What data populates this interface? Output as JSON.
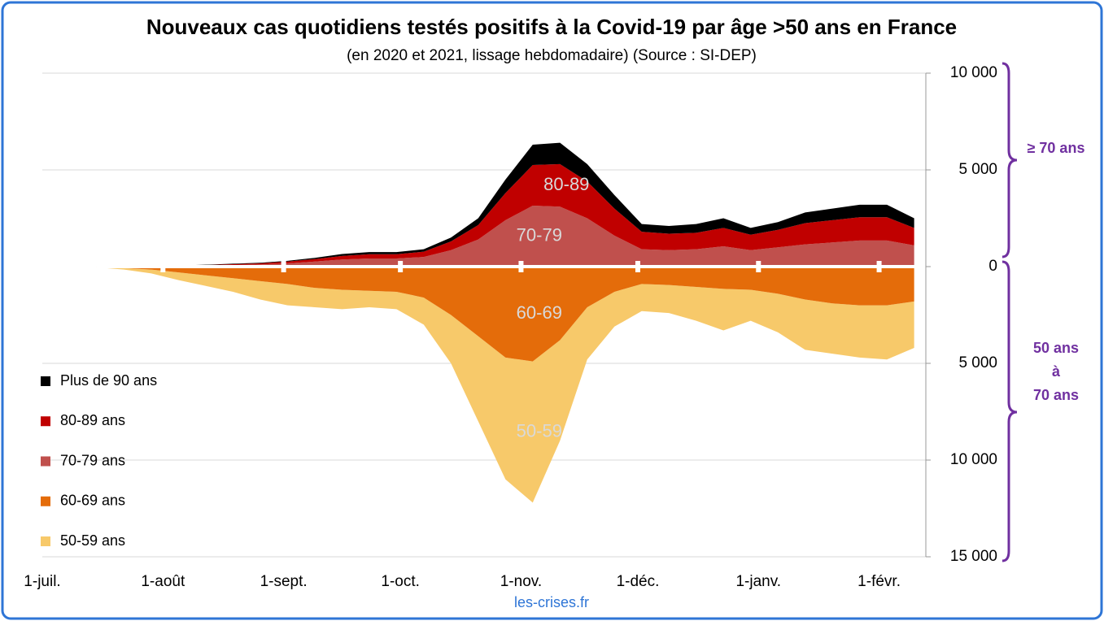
{
  "chart_data": {
    "type": "area",
    "title": "Nouveaux cas quotidiens testés positifs à la Covid-19 par âge >50 ans en France",
    "subtitle": "(en 2020 et 2021, lissage hebdomadaire) (Source : SI-DEP)",
    "source": "les-crises.fr",
    "brace_labels": {
      "upper": "≥ 70 ans",
      "lower": [
        "50 ans",
        "à",
        "70 ans"
      ]
    },
    "x": [
      14,
      21,
      28,
      35,
      42,
      49,
      56,
      63,
      70,
      77,
      84,
      91,
      98,
      105,
      112,
      119,
      126,
      133,
      140,
      147,
      154,
      161,
      168,
      175,
      182,
      189,
      196,
      203,
      210,
      217,
      224
    ],
    "xlim": [
      0,
      227
    ],
    "xticks": [
      {
        "value": 0,
        "label": "1-juil."
      },
      {
        "value": 31,
        "label": "1-août"
      },
      {
        "value": 62,
        "label": "1-sept."
      },
      {
        "value": 92,
        "label": "1-oct."
      },
      {
        "value": 123,
        "label": "1-nov."
      },
      {
        "value": 153,
        "label": "1-déc."
      },
      {
        "value": 184,
        "label": "1-janv."
      },
      {
        "value": 215,
        "label": "1-févr."
      }
    ],
    "ylim": [
      -15000,
      10000
    ],
    "yticks": [
      {
        "value": 10000,
        "label": "10 000"
      },
      {
        "value": 5000,
        "label": "5 000"
      },
      0,
      {
        "value": -5000,
        "label": "5 000"
      },
      {
        "value": -10000,
        "label": "10 000"
      },
      {
        "value": -15000,
        "label": "15 000"
      }
    ],
    "grid": true,
    "series": [
      {
        "name": "50-59 ans",
        "label": "50-59",
        "color": "#f7c96a",
        "values": [
          -20,
          -70,
          -200,
          -400,
          -550,
          -700,
          -950,
          -1100,
          -1000,
          -1000,
          -850,
          -900,
          -1400,
          -2500,
          -4400,
          -6300,
          -7300,
          -5200,
          -2700,
          -1800,
          -1400,
          -1450,
          -1750,
          -2150,
          -1600,
          -2000,
          -2600,
          -2600,
          -2700,
          -2800,
          -2400
        ]
      },
      {
        "name": "60-69 ans",
        "label": "60-69",
        "color": "#e46c0a",
        "values": [
          -20,
          -80,
          -150,
          -300,
          -450,
          -600,
          -750,
          -900,
          -1100,
          -1200,
          -1250,
          -1300,
          -1600,
          -2500,
          -3600,
          -4700,
          -4900,
          -3800,
          -2100,
          -1300,
          -900,
          -950,
          -1050,
          -1150,
          -1200,
          -1400,
          -1700,
          -1900,
          -2000,
          -2000,
          -1800
        ]
      },
      {
        "name": "70-79 ans",
        "label": "70-79",
        "color": "#c0504d",
        "values": [
          0,
          10,
          15,
          30,
          50,
          80,
          110,
          170,
          260,
          370,
          420,
          420,
          500,
          850,
          1400,
          2400,
          3150,
          3100,
          2500,
          1600,
          900,
          850,
          900,
          1050,
          850,
          1000,
          1150,
          1250,
          1350,
          1350,
          1100
        ]
      },
      {
        "name": "80-89 ans",
        "label": "80-89",
        "color": "#c00000",
        "values": [
          0,
          6,
          10,
          20,
          30,
          45,
          60,
          90,
          130,
          180,
          220,
          220,
          270,
          450,
          750,
          1400,
          2100,
          2200,
          1900,
          1400,
          900,
          850,
          850,
          950,
          800,
          900,
          1100,
          1150,
          1200,
          1200,
          900
        ]
      },
      {
        "name": "Plus de 90 ans",
        "color": "#000000",
        "values": [
          0,
          4,
          5,
          10,
          20,
          25,
          30,
          40,
          60,
          100,
          110,
          110,
          130,
          200,
          350,
          700,
          1050,
          1100,
          900,
          700,
          400,
          400,
          450,
          500,
          350,
          400,
          550,
          600,
          650,
          650,
          500
        ]
      }
    ]
  }
}
